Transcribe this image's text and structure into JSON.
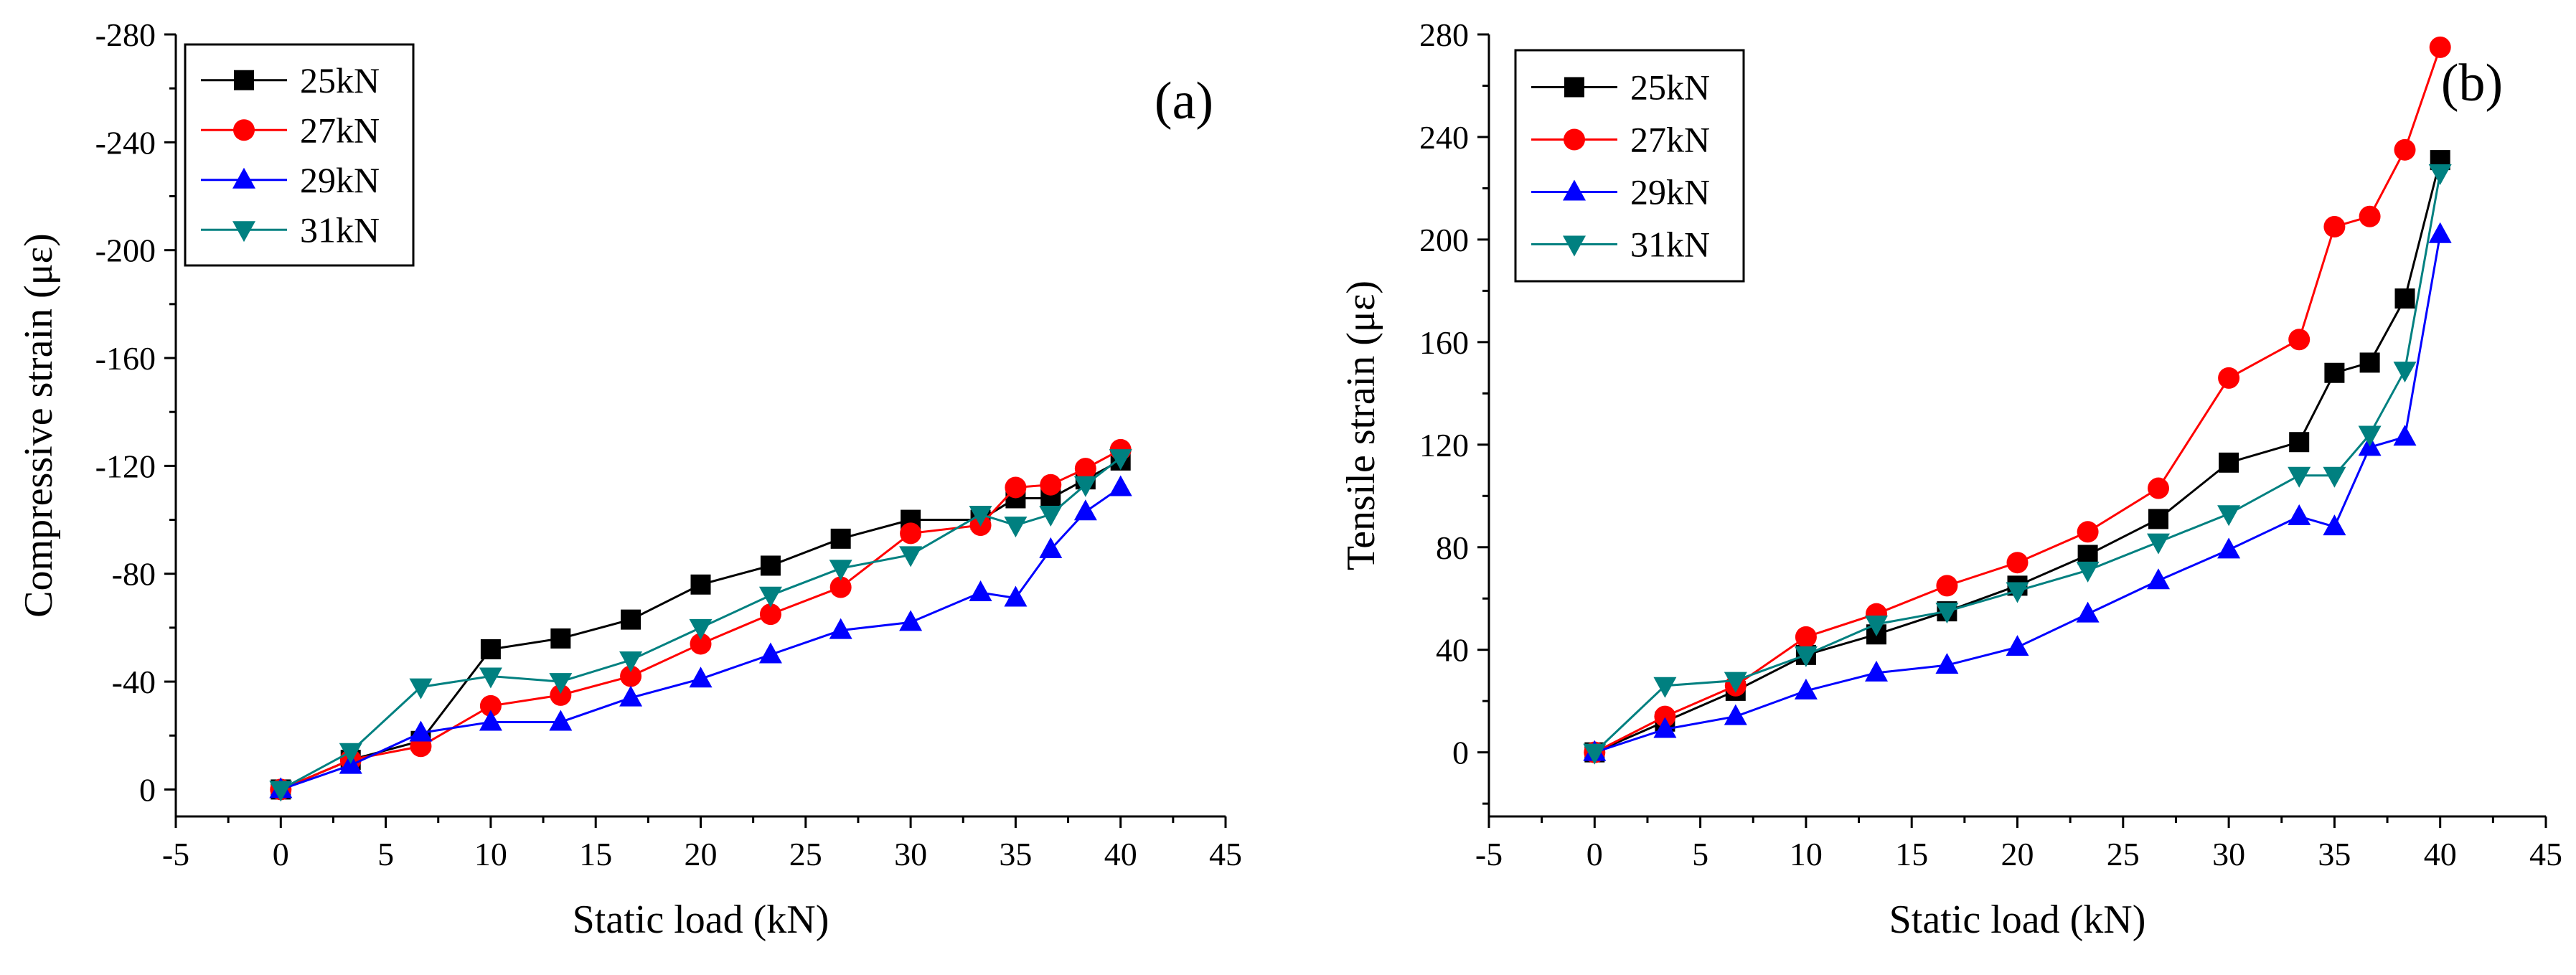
{
  "chart_data": [
    {
      "type": "line",
      "panel_label": "(a)",
      "xlabel": "Static load (kN)",
      "ylabel": "Compressive strain (με)",
      "xlim": [
        -5,
        45
      ],
      "ylim": [
        10,
        -280
      ],
      "y_axis_inverted": true,
      "grid": false,
      "legend_position": "top-left",
      "x_ticks": [
        -5,
        0,
        5,
        10,
        15,
        20,
        25,
        30,
        35,
        40,
        45
      ],
      "x_tick_labels": [
        "-5",
        "0",
        "5",
        "10",
        "15",
        "20",
        "25",
        "30",
        "35",
        "40",
        "45"
      ],
      "y_ticks": [
        0,
        -40,
        -80,
        -120,
        -160,
        -200,
        -240,
        -280
      ],
      "y_tick_labels": [
        "0",
        "-40",
        "-80",
        "-120",
        "-160",
        "-200",
        "-240",
        "-280"
      ],
      "x": [
        0,
        3.33,
        6.67,
        10,
        13.33,
        16.67,
        20,
        23.33,
        26.67,
        30,
        33.33,
        35,
        36.67,
        38.33,
        40
      ],
      "series": [
        {
          "name": "25kN",
          "color": "#000000",
          "marker": "square",
          "values": [
            0,
            -11,
            -18,
            -52,
            -56,
            -63,
            -76,
            -83,
            -93,
            -100,
            -100,
            -108,
            -108,
            -115,
            -122
          ]
        },
        {
          "name": "27kN",
          "color": "#ff0000",
          "marker": "circle",
          "values": [
            0,
            -11,
            -16,
            -31,
            -35,
            -42,
            -54,
            -65,
            -75,
            -95,
            -98,
            -112,
            -113,
            -119,
            -126
          ]
        },
        {
          "name": "29kN",
          "color": "#0000ff",
          "marker": "triangle-up",
          "values": [
            0,
            -9,
            -21,
            -25,
            -25,
            -34,
            -41,
            -50,
            -59,
            -62,
            -73,
            -71,
            -89,
            -103,
            -112
          ]
        },
        {
          "name": "31kN",
          "color": "#008080",
          "marker": "triangle-down",
          "values": [
            0,
            -14,
            -38,
            -42,
            -40,
            -48,
            -60,
            -72,
            -82,
            -87,
            -102,
            -98,
            -102,
            -113,
            -123
          ]
        }
      ]
    },
    {
      "type": "line",
      "panel_label": "(b)",
      "xlabel": "Static load (kN)",
      "ylabel": "Tensile strain (με)",
      "xlim": [
        -5,
        45
      ],
      "ylim": [
        -25,
        280
      ],
      "y_axis_inverted": false,
      "grid": false,
      "legend_position": "top-left",
      "x_ticks": [
        -5,
        0,
        5,
        10,
        15,
        20,
        25,
        30,
        35,
        40,
        45
      ],
      "x_tick_labels": [
        "-5",
        "0",
        "5",
        "10",
        "15",
        "20",
        "25",
        "30",
        "35",
        "40",
        "45"
      ],
      "y_ticks": [
        0,
        40,
        80,
        120,
        160,
        200,
        240,
        280
      ],
      "y_tick_labels": [
        "0",
        "40",
        "80",
        "120",
        "160",
        "200",
        "240",
        "280"
      ],
      "x": [
        0,
        3.33,
        6.67,
        10,
        13.33,
        16.67,
        20,
        23.33,
        26.67,
        30,
        33.33,
        35,
        36.67,
        38.33,
        40
      ],
      "series": [
        {
          "name": "25kN",
          "color": "#000000",
          "marker": "square",
          "values": [
            0,
            12,
            24,
            38,
            46,
            55,
            65,
            77,
            91,
            113,
            121,
            148,
            152,
            177,
            231
          ]
        },
        {
          "name": "27kN",
          "color": "#ff0000",
          "marker": "circle",
          "values": [
            0,
            14,
            26,
            45,
            54,
            65,
            74,
            86,
            103,
            146,
            161,
            205,
            209,
            235,
            275
          ]
        },
        {
          "name": "29kN",
          "color": "#0000ff",
          "marker": "triangle-up",
          "values": [
            0,
            9,
            14,
            24,
            31,
            34,
            41,
            54,
            67,
            79,
            92,
            88,
            119,
            123,
            202
          ]
        },
        {
          "name": "31kN",
          "color": "#008080",
          "marker": "triangle-down",
          "values": [
            0,
            26,
            28,
            38,
            50,
            55,
            63,
            71,
            82,
            93,
            108,
            108,
            124,
            149,
            226
          ]
        }
      ]
    }
  ]
}
